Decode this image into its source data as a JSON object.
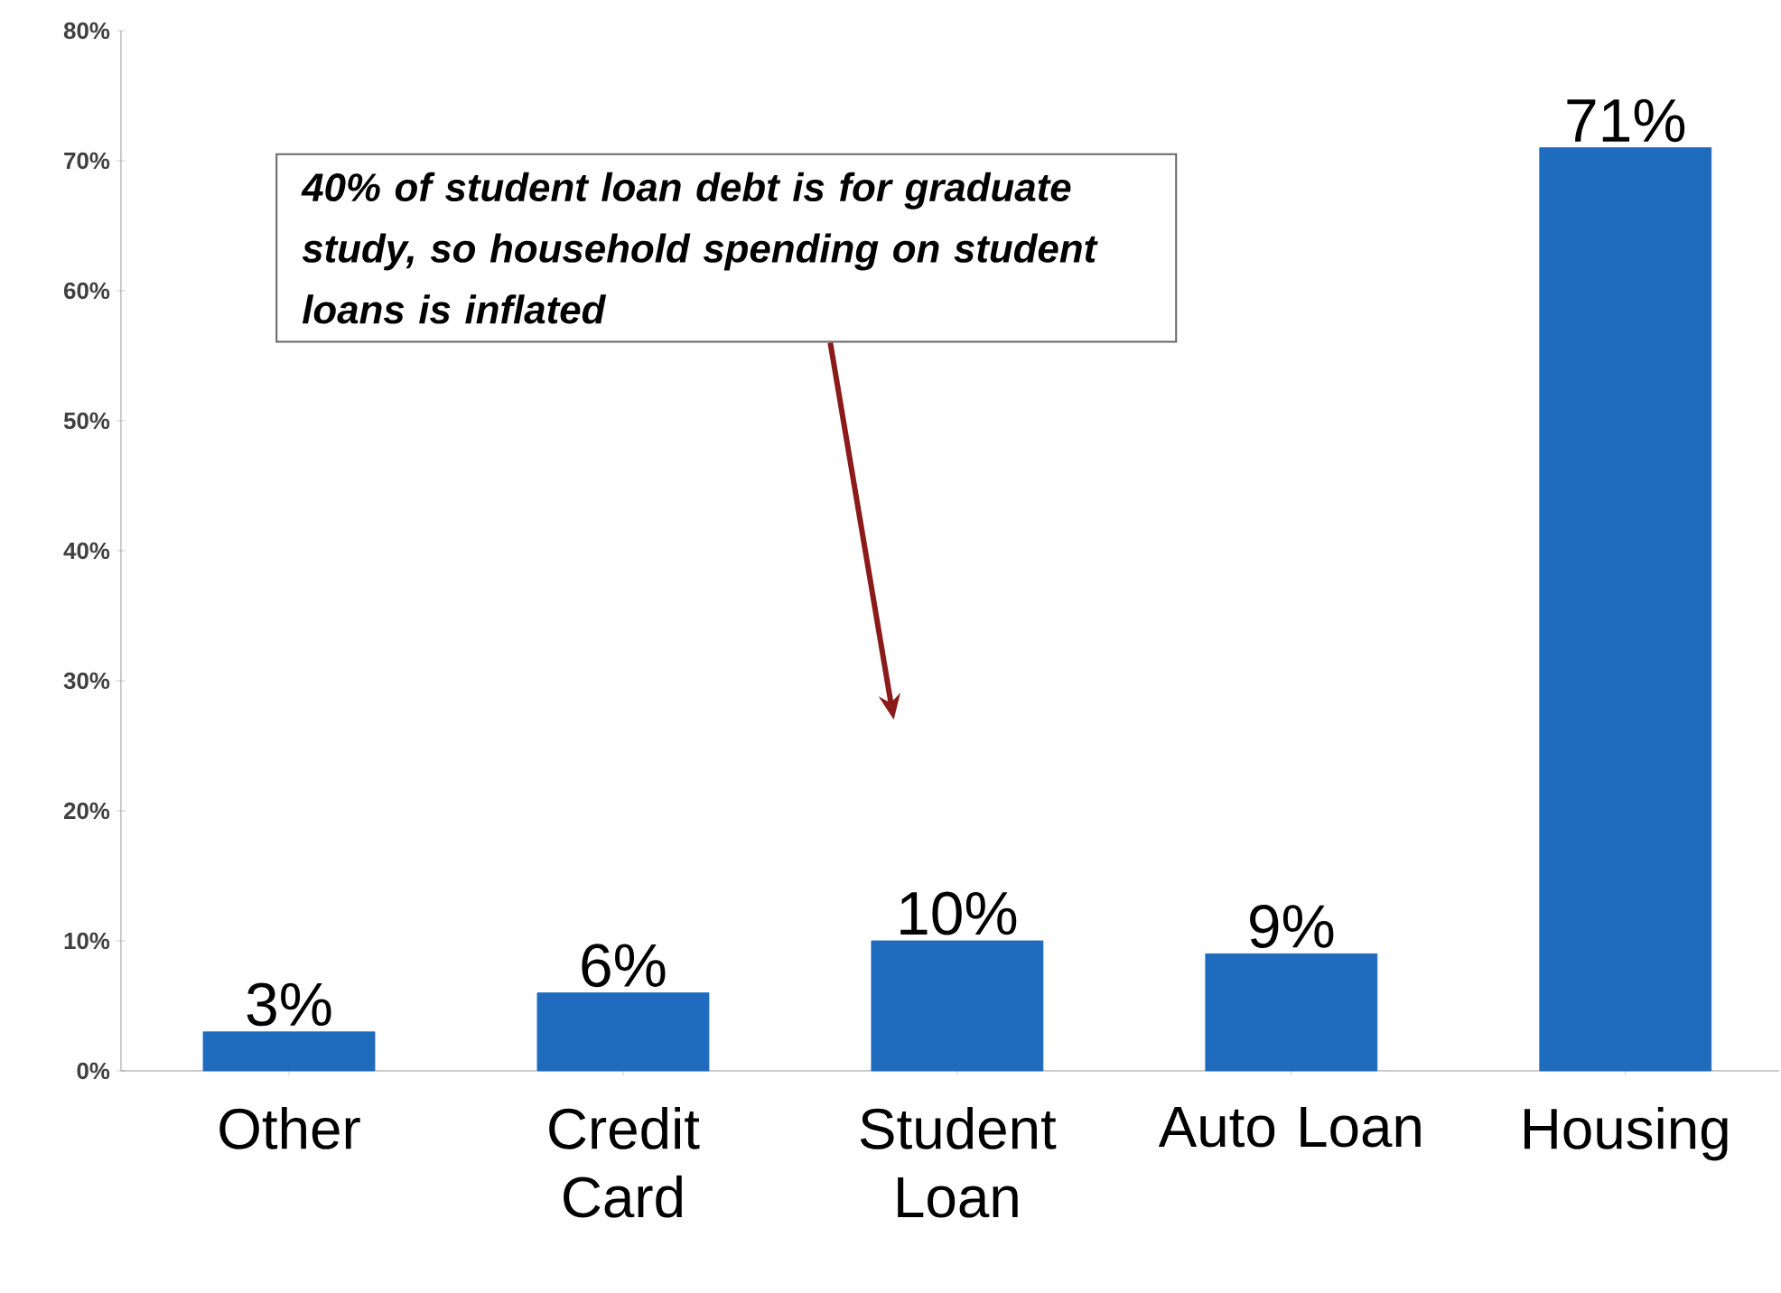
{
  "chart_data": {
    "type": "bar",
    "categories": [
      "Other",
      "Credit Card",
      "Student Loan",
      "Auto Loan",
      "Housing"
    ],
    "values": [
      3,
      6,
      10,
      9,
      71
    ],
    "color": "#1f6bbd",
    "data_labels": true,
    "value_labels": [
      "3%",
      "6%",
      "10%",
      "9%",
      "71%"
    ],
    "ylim": [
      0,
      80
    ],
    "yticks": [
      {
        "value": 0,
        "label": "0%"
      },
      {
        "value": 10,
        "label": "10%"
      },
      {
        "value": 20,
        "label": "20%"
      },
      {
        "value": 30,
        "label": "30%"
      },
      {
        "value": 40,
        "label": "40%"
      },
      {
        "value": 50,
        "label": "50%"
      },
      {
        "value": 60,
        "label": "60%"
      },
      {
        "value": 70,
        "label": "70%"
      },
      {
        "value": 80,
        "label": "80%"
      }
    ],
    "grid": false,
    "annotations": [
      "40% of student loan debt is for graduate study, so household spending on student loans is inflated"
    ]
  }
}
